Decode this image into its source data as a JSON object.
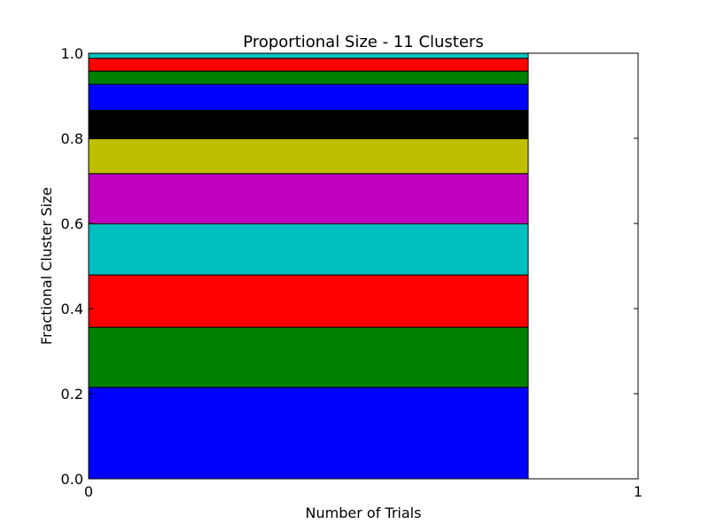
{
  "chart_data": {
    "type": "bar",
    "stacked": true,
    "title": "Proportional Size - 11 Clusters",
    "xlabel": "Number of Trials",
    "ylabel": "Fractional Cluster Size",
    "xlim": [
      0,
      1
    ],
    "ylim": [
      0,
      1.0
    ],
    "xticks": [
      "0",
      "1"
    ],
    "yticks": [
      "0.0",
      "0.2",
      "0.4",
      "0.6",
      "0.8",
      "1.0"
    ],
    "grid": false,
    "bar": {
      "x_start": 0,
      "x_end": 0.8
    },
    "segments": [
      {
        "value": 0.215,
        "color": "#0000ff"
      },
      {
        "value": 0.141,
        "color": "#008000"
      },
      {
        "value": 0.123,
        "color": "#ff0000"
      },
      {
        "value": 0.12,
        "color": "#00bfbf"
      },
      {
        "value": 0.118,
        "color": "#bf00bf"
      },
      {
        "value": 0.082,
        "color": "#bfbf00"
      },
      {
        "value": 0.067,
        "color": "#000000"
      },
      {
        "value": 0.061,
        "color": "#0000ff"
      },
      {
        "value": 0.031,
        "color": "#008000"
      },
      {
        "value": 0.03,
        "color": "#ff0000"
      },
      {
        "value": 0.012,
        "color": "#00bfbf"
      }
    ]
  }
}
